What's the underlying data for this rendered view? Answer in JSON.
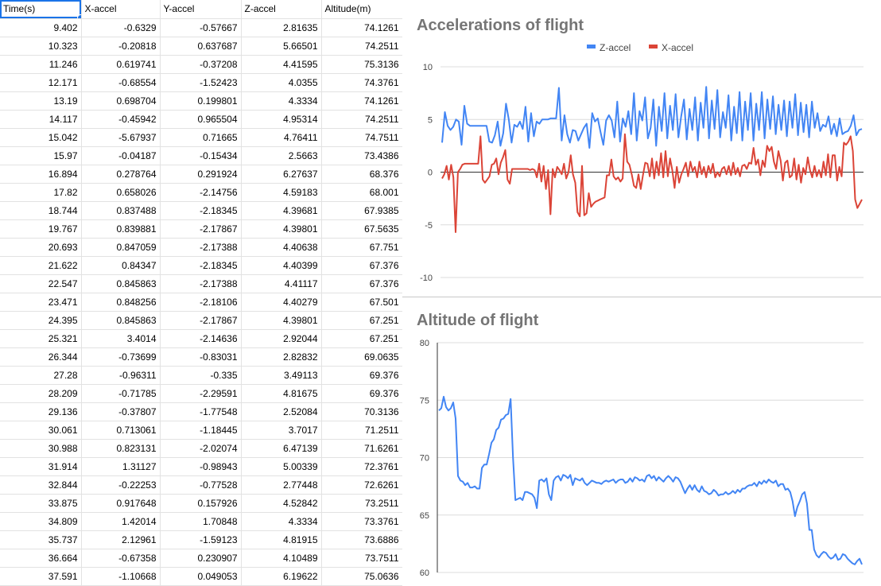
{
  "sheet": {
    "headers": [
      "Time(s)",
      "X-accel",
      "Y-accel",
      "Z-accel",
      "Altitude(m)"
    ],
    "rows": [
      [
        "9.402",
        "-0.6329",
        "-0.57667",
        "2.81635",
        "74.1261"
      ],
      [
        "10.323",
        "-0.20818",
        "0.637687",
        "5.66501",
        "74.2511"
      ],
      [
        "11.246",
        "0.619741",
        "-0.37208",
        "4.41595",
        "75.3136"
      ],
      [
        "12.171",
        "-0.68554",
        "-1.52423",
        "4.0355",
        "74.3761"
      ],
      [
        "13.19",
        "0.698704",
        "0.199801",
        "4.3334",
        "74.1261"
      ],
      [
        "14.117",
        "-0.45942",
        "0.965504",
        "4.95314",
        "74.2511"
      ],
      [
        "15.042",
        "-5.67937",
        "0.71665",
        "4.76411",
        "74.7511"
      ],
      [
        "15.97",
        "-0.04187",
        "-0.15434",
        "2.5663",
        "73.4386"
      ],
      [
        "16.894",
        "0.278764",
        "0.291924",
        "6.27637",
        "68.376"
      ],
      [
        "17.82",
        "0.658026",
        "-2.14756",
        "4.59183",
        "68.001"
      ],
      [
        "18.744",
        "0.837488",
        "-2.18345",
        "4.39681",
        "67.9385"
      ],
      [
        "19.767",
        "0.839881",
        "-2.17867",
        "4.39801",
        "67.5635"
      ],
      [
        "20.693",
        "0.847059",
        "-2.17388",
        "4.40638",
        "67.751"
      ],
      [
        "21.622",
        "0.84347",
        "-2.18345",
        "4.40399",
        "67.376"
      ],
      [
        "22.547",
        "0.845863",
        "-2.17388",
        "4.41117",
        "67.376"
      ],
      [
        "23.471",
        "0.848256",
        "-2.18106",
        "4.40279",
        "67.501"
      ],
      [
        "24.395",
        "0.845863",
        "-2.17867",
        "4.39801",
        "67.251"
      ],
      [
        "25.321",
        "3.4014",
        "-2.14636",
        "2.92044",
        "67.251"
      ],
      [
        "26.344",
        "-0.73699",
        "-0.83031",
        "2.82832",
        "69.0635"
      ],
      [
        "27.28",
        "-0.96311",
        "-0.335",
        "3.49113",
        "69.376"
      ],
      [
        "28.209",
        "-0.71785",
        "-2.29591",
        "4.81675",
        "69.376"
      ],
      [
        "29.136",
        "-0.37807",
        "-1.77548",
        "2.52084",
        "70.3136"
      ],
      [
        "30.061",
        "0.713061",
        "-1.18445",
        "3.7017",
        "71.2511"
      ],
      [
        "30.988",
        "0.823131",
        "-2.02074",
        "6.47139",
        "71.6261"
      ],
      [
        "31.914",
        "1.31127",
        "-0.98943",
        "5.00339",
        "72.3761"
      ],
      [
        "32.844",
        "-0.22253",
        "-0.77528",
        "2.77448",
        "72.6261"
      ],
      [
        "33.875",
        "0.917648",
        "0.157926",
        "4.52842",
        "73.2511"
      ],
      [
        "34.809",
        "1.42014",
        "1.70848",
        "4.3334",
        "73.3761"
      ],
      [
        "35.737",
        "2.12961",
        "-1.59123",
        "4.81915",
        "73.6886"
      ],
      [
        "36.664",
        "-0.67358",
        "0.230907",
        "4.10489",
        "73.7511"
      ],
      [
        "37.591",
        "-1.10668",
        "0.049053",
        "6.19622",
        "75.0636"
      ]
    ]
  },
  "colors": {
    "z_series": "#4285f4",
    "x_series": "#db4437",
    "grid": "#dcdcdc",
    "selection": "#1a73e8"
  },
  "chart_data": [
    {
      "type": "line",
      "title": "Accelerations of flight",
      "legend_position": "top-right",
      "ylim": [
        -10,
        10
      ],
      "yticks": [
        "10",
        "5",
        "0",
        "-5",
        "-10"
      ],
      "grid": true,
      "series": [
        {
          "name": "Z-accel",
          "values": [
            2.8,
            5.7,
            4.4,
            4.0,
            4.3,
            5.0,
            4.8,
            2.6,
            6.3,
            4.6,
            4.4,
            4.4,
            4.4,
            4.4,
            4.4,
            4.4,
            4.4,
            2.9,
            2.8,
            3.5,
            4.8,
            2.5,
            3.7,
            6.5,
            5.0,
            2.8,
            4.5,
            4.3,
            4.8,
            4.1,
            6.2,
            2.9,
            5.6,
            3.4,
            4.8,
            4.6,
            5.0,
            5.0,
            5.0,
            5.1,
            5.1,
            5.1,
            8.0,
            3.0,
            5.4,
            3.6,
            2.8,
            4.0,
            3.9,
            3.0,
            3.6,
            4.2,
            4.6,
            2.3,
            5.6,
            4.8,
            5.1,
            3.8,
            2.6,
            4.9,
            5.4,
            4.9,
            3.3,
            6.7,
            2.9,
            5.1,
            4.3,
            5.8,
            3.6,
            7.5,
            3.0,
            5.8,
            4.9,
            7.1,
            3.2,
            4.2,
            6.9,
            2.5,
            6.2,
            3.9,
            7.5,
            3.2,
            6.3,
            4.0,
            7.4,
            3.3,
            5.3,
            6.9,
            3.1,
            6.0,
            4.0,
            7.1,
            3.0,
            6.6,
            4.2,
            8.1,
            3.2,
            6.8,
            4.1,
            7.8,
            3.3,
            5.7,
            4.2,
            7.3,
            3.0,
            6.2,
            3.7,
            7.6,
            3.0,
            6.7,
            4.0,
            7.5,
            3.0,
            6.5,
            4.0,
            7.6,
            3.2,
            6.9,
            4.1,
            7.2,
            3.6,
            6.4,
            4.0,
            6.8,
            3.4,
            6.7,
            4.2,
            7.4,
            3.5,
            6.6,
            3.8,
            6.4,
            3.3,
            6.7,
            4.2,
            5.6,
            3.9,
            4.5,
            4.3,
            5.3,
            3.6,
            4.6,
            3.4,
            5.1,
            3.6,
            3.8,
            3.9,
            4.4,
            5.4,
            3.5,
            4.0,
            4.1
          ]
        },
        {
          "name": "X-accel",
          "values": [
            -0.6,
            -0.2,
            0.6,
            -0.7,
            0.7,
            -0.5,
            -5.7,
            0.0,
            0.3,
            0.7,
            0.8,
            0.8,
            0.8,
            0.8,
            0.8,
            0.8,
            0.8,
            3.4,
            -0.7,
            -1.0,
            -0.7,
            -0.4,
            0.7,
            0.8,
            1.3,
            -0.2,
            0.9,
            1.4,
            2.1,
            -0.7,
            -1.1,
            0.3,
            0.3,
            0.3,
            0.3,
            0.3,
            0.3,
            0.3,
            0.3,
            0.2,
            0.3,
            0.2,
            -0.5,
            0.8,
            -0.9,
            0.6,
            -1.6,
            0.2,
            -4.0,
            0.3,
            -0.5,
            0.5,
            0.2,
            -0.2,
            0.8,
            -0.6,
            0.0,
            1.6,
            -0.2,
            -1.0,
            -3.8,
            -4.2,
            0.6,
            -4.1,
            -3.9,
            -2.0,
            -3.3,
            -3.0,
            -2.8,
            -2.7,
            -2.6,
            -2.5,
            -2.4,
            -0.3,
            -0.3,
            1.2,
            -0.4,
            -0.7,
            -0.5,
            -0.9,
            -0.6,
            3.6,
            1.0,
            0.7,
            -0.2,
            -1.3,
            -1.5,
            -0.2,
            -1.6,
            -0.3,
            0.9,
            0.8,
            -0.4,
            1.3,
            -0.6,
            1.0,
            -0.3,
            1.8,
            -0.5,
            2.0,
            -0.4,
            1.3,
            0.2,
            -1.5,
            0.5,
            -1.0,
            -0.2,
            0.3,
            0.9,
            -0.4,
            1.0,
            0.1,
            0.5,
            -0.5,
            1.0,
            -0.2,
            0.5,
            -0.5,
            0.6,
            -0.1,
            0.8,
            -0.5,
            0.0,
            -0.4,
            0.3,
            0.5,
            -0.2,
            0.6,
            -0.3,
            0.9,
            -0.2,
            0.4,
            -0.4,
            0.6,
            0.7,
            0.3,
            0.9,
            0.8,
            2.3,
            0.7,
            1.2,
            -0.3,
            1.1,
            0.5,
            2.5,
            2.0,
            2.4,
            1.0,
            0.3,
            2.0,
            1.1,
            -0.8,
            0.9,
            1.1,
            -0.5,
            -0.3,
            1.3,
            -0.7,
            0.7,
            -1.0,
            0.4,
            -0.2,
            1.4,
            0.2,
            -0.5,
            0.6,
            -0.4,
            0.2,
            -0.5,
            1.0,
            -0.3,
            1.7,
            -0.5,
            1.6,
            1.6,
            -0.8,
            0.5,
            -0.4,
            2.8,
            2.6,
            2.9,
            3.4,
            2.0,
            -2.6,
            -3.4,
            -3.0,
            -2.6
          ]
        }
      ]
    },
    {
      "type": "line",
      "title": "Altitude of flight",
      "ylim": [
        60,
        80
      ],
      "yticks": [
        "80",
        "75",
        "70",
        "65",
        "60"
      ],
      "grid": true,
      "series": [
        {
          "values": [
            74.1,
            74.3,
            75.3,
            74.4,
            74.1,
            74.3,
            74.8,
            73.4,
            68.4,
            68.0,
            67.9,
            67.6,
            67.8,
            67.4,
            67.4,
            67.5,
            67.3,
            67.3,
            69.1,
            69.4,
            69.4,
            70.3,
            71.3,
            71.6,
            72.4,
            72.6,
            73.3,
            73.4,
            73.7,
            73.8,
            75.1,
            70.0,
            66.3,
            66.4,
            66.5,
            66.3,
            67.0,
            67.0,
            66.9,
            66.8,
            66.5,
            65.6,
            68.0,
            68.1,
            67.9,
            68.2,
            66.8,
            66.3,
            68.0,
            68.3,
            68.4,
            68.0,
            68.5,
            68.4,
            68.2,
            68.5,
            67.6,
            68.2,
            68.1,
            68.0,
            68.2,
            67.8,
            67.6,
            67.8,
            68.0,
            67.9,
            67.8,
            67.8,
            67.7,
            67.9,
            68.0,
            67.9,
            68.0,
            68.1,
            67.8,
            68.0,
            68.1,
            68.1,
            67.8,
            67.9,
            68.2,
            67.9,
            68.3,
            68.2,
            68.0,
            68.1,
            67.9,
            68.4,
            68.5,
            68.2,
            68.4,
            68.0,
            68.3,
            68.1,
            67.9,
            68.2,
            68.4,
            68.2,
            67.9,
            68.3,
            68.2,
            67.9,
            67.4,
            66.9,
            67.3,
            67.6,
            67.2,
            67.6,
            67.2,
            67.0,
            67.5,
            67.1,
            67.0,
            66.8,
            66.9,
            67.2,
            67.0,
            66.7,
            66.8,
            66.8,
            67.0,
            66.8,
            66.9,
            67.1,
            66.9,
            67.2,
            67.0,
            67.3,
            67.3,
            67.5,
            67.6,
            67.6,
            67.8,
            67.5,
            67.9,
            67.7,
            68.0,
            67.8,
            68.1,
            67.9,
            67.8,
            68.0,
            67.5,
            67.7,
            67.7,
            67.2,
            67.3,
            67.0,
            66.2,
            64.9,
            65.7,
            66.2,
            66.8,
            67.0,
            66.0,
            63.7,
            63.7,
            62.0,
            61.5,
            61.3,
            61.6,
            61.8,
            61.7,
            61.4,
            61.2,
            61.3,
            61.6,
            61.1,
            61.2,
            61.6,
            61.5,
            61.2,
            61.0,
            60.8,
            60.7,
            61.0,
            61.2,
            60.7
          ]
        }
      ]
    }
  ]
}
